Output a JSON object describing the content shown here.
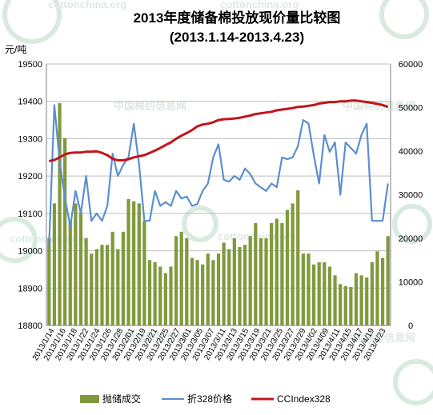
{
  "watermark": {
    "site": "cottonchina.org",
    "brand": "中国棉纺信息网"
  },
  "chart_data": {
    "type": "bar",
    "title": "2013年度储备棉投放现价量比较图",
    "subtitle": "(2013.1.14-2013.4.23)",
    "y_left_unit": "元/吨",
    "y_left_range": [
      18800,
      19500
    ],
    "y_left_ticks": [
      18800,
      18900,
      19000,
      19100,
      19200,
      19300,
      19400,
      19500
    ],
    "y_right_range": [
      0,
      60000
    ],
    "y_right_ticks": [
      0,
      10000,
      20000,
      30000,
      40000,
      50000,
      60000
    ],
    "grid": true,
    "legend_position": "bottom",
    "x_tick_labels": [
      "2013/1/14",
      "2013/1/16",
      "2013/1/18",
      "2013/1/22",
      "2013/1/24",
      "2013/1/26",
      "2013/1/28",
      "2013/2/01",
      "2013/2/19",
      "2013/2/21",
      "2013/2/25",
      "2013/2/27",
      "2013/3/01",
      "2013/3/05",
      "2013/3/07",
      "2013/3/11",
      "2013/3/13",
      "2013/3/15",
      "2013/3/19",
      "2013/3/21",
      "2013/3/25",
      "2013/3/27",
      "2013/3/29",
      "2013/4/02",
      "2013/4/09",
      "2013/4/11",
      "2013/4/15",
      "2013/4/17",
      "2013/4/19",
      "2013/4/23"
    ],
    "series": [
      {
        "name": "抛储成交",
        "type": "bar",
        "axis": "right",
        "color": "#7f9a3c",
        "values": [
          20000,
          28000,
          51000,
          43000,
          24000,
          28000,
          26000,
          20000,
          16500,
          17500,
          18500,
          18500,
          21500,
          17500,
          21500,
          29000,
          28500,
          28000,
          24000,
          15000,
          14500,
          13500,
          12000,
          13500,
          20500,
          21500,
          20000,
          15500,
          15000,
          14000,
          16500,
          15000,
          16500,
          19000,
          17500,
          20000,
          18000,
          18500,
          20500,
          23500,
          20000,
          20000,
          23500,
          24500,
          23500,
          26500,
          28000,
          31000,
          16500,
          16500,
          14000,
          14500,
          14500,
          13500,
          11500,
          9500,
          9000,
          8800,
          12000,
          11500,
          11000,
          14500,
          17000,
          15500,
          20500
        ]
      },
      {
        "name": "折328价格",
        "type": "line",
        "axis": "left",
        "color": "#5b8fd0",
        "values": [
          19013,
          19390,
          19240,
          19140,
          19065,
          19160,
          19100,
          19200,
          19080,
          19100,
          19080,
          19120,
          19260,
          19200,
          19230,
          19250,
          19340,
          19230,
          19080,
          19080,
          19160,
          19120,
          19130,
          19120,
          19160,
          19140,
          19145,
          19120,
          19125,
          19160,
          19180,
          19250,
          19285,
          19190,
          19185,
          19200,
          19190,
          19220,
          19205,
          19180,
          19170,
          19160,
          19180,
          19170,
          19250,
          19245,
          19250,
          19280,
          19350,
          19340,
          19255,
          19180,
          19310,
          19265,
          19290,
          19150,
          19290,
          19275,
          19260,
          19310,
          19340,
          19080,
          19080,
          19080,
          19180
        ]
      },
      {
        "name": "CCIndex328",
        "type": "line",
        "axis": "left",
        "color": "#c0151b",
        "values": [
          19240,
          19243,
          19250,
          19258,
          19262,
          19263,
          19263,
          19265,
          19265,
          19266,
          19262,
          19256,
          19246,
          19242,
          19242,
          19245,
          19250,
          19253,
          19256,
          19262,
          19268,
          19275,
          19283,
          19290,
          19300,
          19308,
          19315,
          19323,
          19333,
          19338,
          19340,
          19344,
          19350,
          19352,
          19353,
          19354,
          19356,
          19359,
          19362,
          19366,
          19368,
          19370,
          19372,
          19376,
          19378,
          19380,
          19382,
          19385,
          19386,
          19388,
          19390,
          19394,
          19396,
          19398,
          19398,
          19400,
          19400,
          19402,
          19402,
          19400,
          19398,
          19396,
          19393,
          19390,
          19385
        ]
      }
    ]
  }
}
